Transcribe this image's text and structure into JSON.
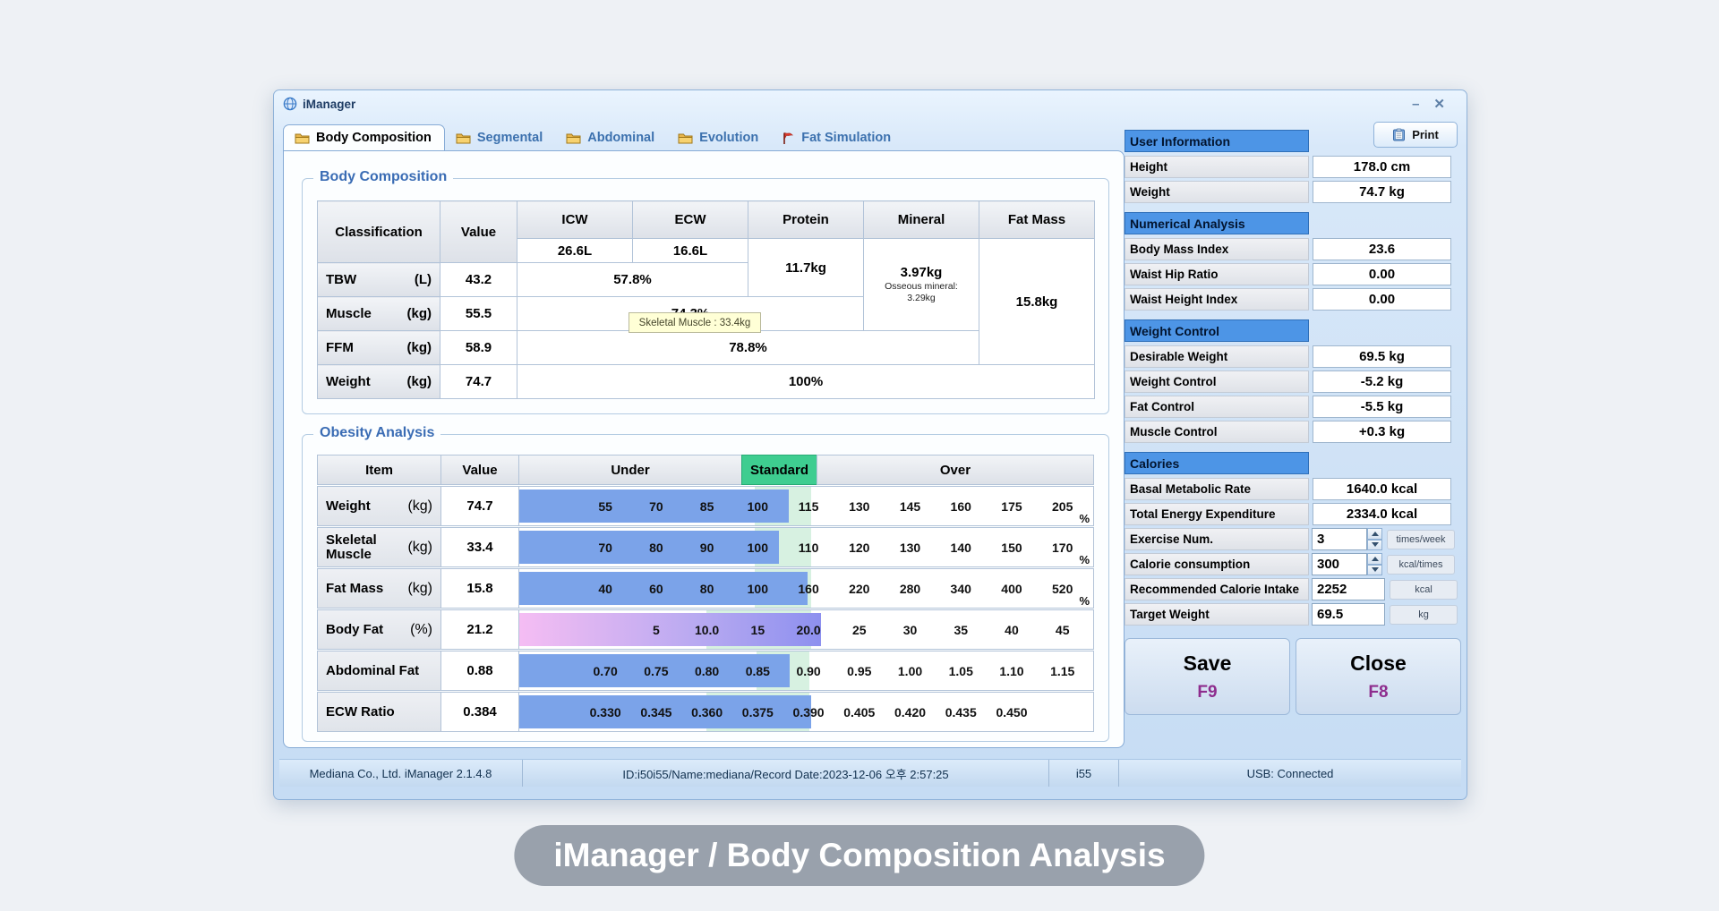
{
  "window": {
    "title": "iManager",
    "minimize_glyph": "–",
    "close_glyph": "✕"
  },
  "tabs": [
    {
      "label": "Body Composition",
      "icon": "folder-icon",
      "active": true
    },
    {
      "label": "Segmental",
      "icon": "folder-icon",
      "active": false
    },
    {
      "label": "Abdominal",
      "icon": "folder-icon",
      "active": false
    },
    {
      "label": "Evolution",
      "icon": "folder-icon",
      "active": false
    },
    {
      "label": "Fat Simulation",
      "icon": "flag-icon",
      "active": false
    }
  ],
  "print_button": "Print",
  "body_composition": {
    "section_title": "Body Composition",
    "headers": {
      "classification": "Classification",
      "value": "Value",
      "icw": "ICW",
      "ecw": "ECW",
      "protein": "Protein",
      "mineral": "Mineral",
      "fat_mass": "Fat Mass"
    },
    "icw_value": "26.6L",
    "ecw_value": "16.6L",
    "protein_value": "11.7kg",
    "mineral_value": "3.97kg",
    "mineral_note_line1": "Osseous mineral:",
    "mineral_note_line2": "3.29kg",
    "fat_mass_value": "15.8kg",
    "rows": [
      {
        "label": "TBW",
        "unit": "(L)",
        "value": "43.2",
        "percent": "57.8%"
      },
      {
        "label": "Muscle",
        "unit": "(kg)",
        "value": "55.5",
        "percent": "74.3%"
      },
      {
        "label": "FFM",
        "unit": "(kg)",
        "value": "58.9",
        "percent": "78.8%"
      },
      {
        "label": "Weight",
        "unit": "(kg)",
        "value": "74.7",
        "percent": "100%"
      }
    ],
    "tooltip": "Skeletal Muscle : 33.4kg"
  },
  "obesity": {
    "section_title": "Obesity Analysis",
    "headers": {
      "item": "Item",
      "value": "Value",
      "under": "Under",
      "standard": "Standard",
      "over": "Over"
    },
    "rows": [
      {
        "item": "Weight",
        "unit": "(kg)",
        "value": "74.7",
        "ticks": [
          "55",
          "70",
          "85",
          "100",
          "115",
          "130",
          "145",
          "160",
          "175",
          "205"
        ],
        "tick_unit": "%",
        "offset": 0,
        "bar_end": 47.0,
        "zone": [
          41.0,
          50.9
        ],
        "bar_style": "blue"
      },
      {
        "item": "Skeletal Muscle",
        "unit": "(kg)",
        "value": "33.4",
        "ticks": [
          "70",
          "80",
          "90",
          "100",
          "110",
          "120",
          "130",
          "140",
          "150",
          "170"
        ],
        "tick_unit": "%",
        "offset": 0,
        "bar_end": 45.2,
        "zone": [
          41.0,
          50.9
        ],
        "bar_style": "blue"
      },
      {
        "item": "Fat Mass",
        "unit": "(kg)",
        "value": "15.8",
        "ticks": [
          "40",
          "60",
          "80",
          "100",
          "160",
          "220",
          "280",
          "340",
          "400",
          "520"
        ],
        "tick_unit": "%",
        "offset": 0,
        "bar_end": 50.3,
        "zone": [
          41.0,
          50.9
        ],
        "bar_style": "blue"
      },
      {
        "item": "Body Fat",
        "unit": "(%)",
        "value": "21.2",
        "ticks": [
          "5",
          "10.0",
          "15",
          "20.0",
          "25",
          "30",
          "35",
          "40",
          "45"
        ],
        "tick_unit": "",
        "offset": 1,
        "bar_end": 52.6,
        "zone": [
          32.6,
          50.9
        ],
        "bar_style": "purple"
      },
      {
        "item": "Abdominal Fat",
        "unit": "",
        "value": "0.88",
        "ticks": [
          "0.70",
          "0.75",
          "0.80",
          "0.85",
          "0.90",
          "0.95",
          "1.00",
          "1.05",
          "1.10",
          "1.15"
        ],
        "tick_unit": "",
        "offset": 0,
        "bar_end": 47.1,
        "zone": [
          41.3,
          50.6
        ],
        "bar_style": "blue"
      },
      {
        "item": "ECW Ratio",
        "unit": "",
        "value": "0.384",
        "ticks": [
          "0.330",
          "0.345",
          "0.360",
          "0.375",
          "0.390",
          "0.405",
          "0.420",
          "0.435",
          "0.450"
        ],
        "tick_unit": "",
        "offset": 0,
        "bar_end": 50.9,
        "zone": [
          32.6,
          50.6
        ],
        "bar_style": "blue"
      }
    ]
  },
  "user_info": {
    "title": "User Information",
    "rows": [
      {
        "label": "Height",
        "value": "178.0  cm"
      },
      {
        "label": "Weight",
        "value": "74.7  kg"
      }
    ]
  },
  "numerical": {
    "title": "Numerical Analysis",
    "rows": [
      {
        "label": "Body Mass Index",
        "value": "23.6"
      },
      {
        "label": "Waist Hip Ratio",
        "value": "0.00"
      },
      {
        "label": "Waist Height Index",
        "value": "0.00"
      }
    ]
  },
  "weight_control": {
    "title": "Weight Control",
    "rows": [
      {
        "label": "Desirable Weight",
        "value": "69.5 kg"
      },
      {
        "label": "Weight Control",
        "value": "-5.2 kg"
      },
      {
        "label": "Fat Control",
        "value": "-5.5 kg"
      },
      {
        "label": "Muscle Control",
        "value": "+0.3 kg"
      }
    ]
  },
  "calories": {
    "title": "Calories",
    "rows": [
      {
        "label": "Basal Metabolic Rate",
        "value": "1640.0 kcal"
      },
      {
        "label": "Total Energy Expenditure",
        "value": "2334.0 kcal"
      }
    ],
    "inputs": [
      {
        "label": "Exercise Num.",
        "value": "3",
        "unit": "times/week",
        "spinner": true
      },
      {
        "label": "Calorie consumption",
        "value": "300",
        "unit": "kcal/times",
        "spinner": true
      },
      {
        "label": "Recommended Calorie Intake",
        "value": "2252",
        "unit": "kcal",
        "spinner": false
      },
      {
        "label": "Target Weight",
        "value": "69.5",
        "unit": "kg",
        "spinner": false
      }
    ]
  },
  "actions": {
    "save": {
      "label": "Save",
      "fkey": "F9"
    },
    "close": {
      "label": "Close",
      "fkey": "F8"
    }
  },
  "status_bar": {
    "company": "Mediana Co., Ltd. iManager 2.1.4.8",
    "record": "ID:i50i55/Name:mediana/Record Date:2023-12-06 오후 2:57:25",
    "device": "i55",
    "usb": "USB: Connected"
  },
  "caption": "iManager / Body Composition Analysis",
  "colors": {
    "standard_green": "#3ecd90",
    "zone_green": "#d7f1e1",
    "bar_blue": "#7ba3e9",
    "bodyfat_gradient_start": "#f5bdf3",
    "bodyfat_gradient_end": "#8d90ef",
    "section_header_blue": "#4d95e6",
    "fkey_purple": "#8e2d8e",
    "pill_gray": "#99a1ac"
  }
}
